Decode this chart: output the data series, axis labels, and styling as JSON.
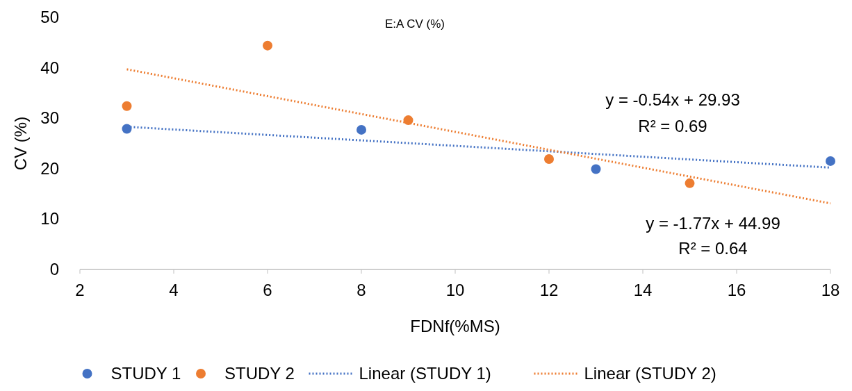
{
  "chart_data": {
    "type": "scatter",
    "title": "E:A CV (%)",
    "xlabel": "FDNf(%MS)",
    "ylabel": "CV (%)",
    "xlim": [
      2,
      18
    ],
    "xticks": [
      2,
      4,
      6,
      8,
      10,
      12,
      14,
      16,
      18
    ],
    "ylim": [
      0,
      50
    ],
    "yticks": [
      0,
      10,
      20,
      30,
      40,
      50
    ],
    "grid": false,
    "legend": "bottom",
    "marker": "circle",
    "series": [
      {
        "name": "STUDY 1",
        "color": "#4472c4",
        "x": [
          3,
          8,
          13,
          18
        ],
        "values": [
          27.9,
          27.7,
          19.9,
          21.5
        ]
      },
      {
        "name": "STUDY 2",
        "color": "#ed7d31",
        "x": [
          3,
          6,
          9,
          12,
          15
        ],
        "values": [
          32.4,
          44.4,
          29.6,
          21.9,
          17.1
        ]
      },
      {
        "name": "Linear (STUDY 1)",
        "color": "#4472c4",
        "type": "line",
        "line_style": "dotted",
        "marker": "none",
        "x": [
          3,
          18
        ],
        "values": [
          28.3,
          20.2
        ]
      },
      {
        "name": "Linear (STUDY 2)",
        "color": "#ed7d31",
        "type": "line",
        "line_style": "dotted",
        "marker": "none",
        "x": [
          3,
          18
        ],
        "values": [
          39.7,
          13.1
        ]
      }
    ],
    "annotations": [
      "y = -0.54x + 29.93",
      "R² = 0.69",
      "y = -1.77x + 44.99",
      "R² = 0.64"
    ]
  }
}
